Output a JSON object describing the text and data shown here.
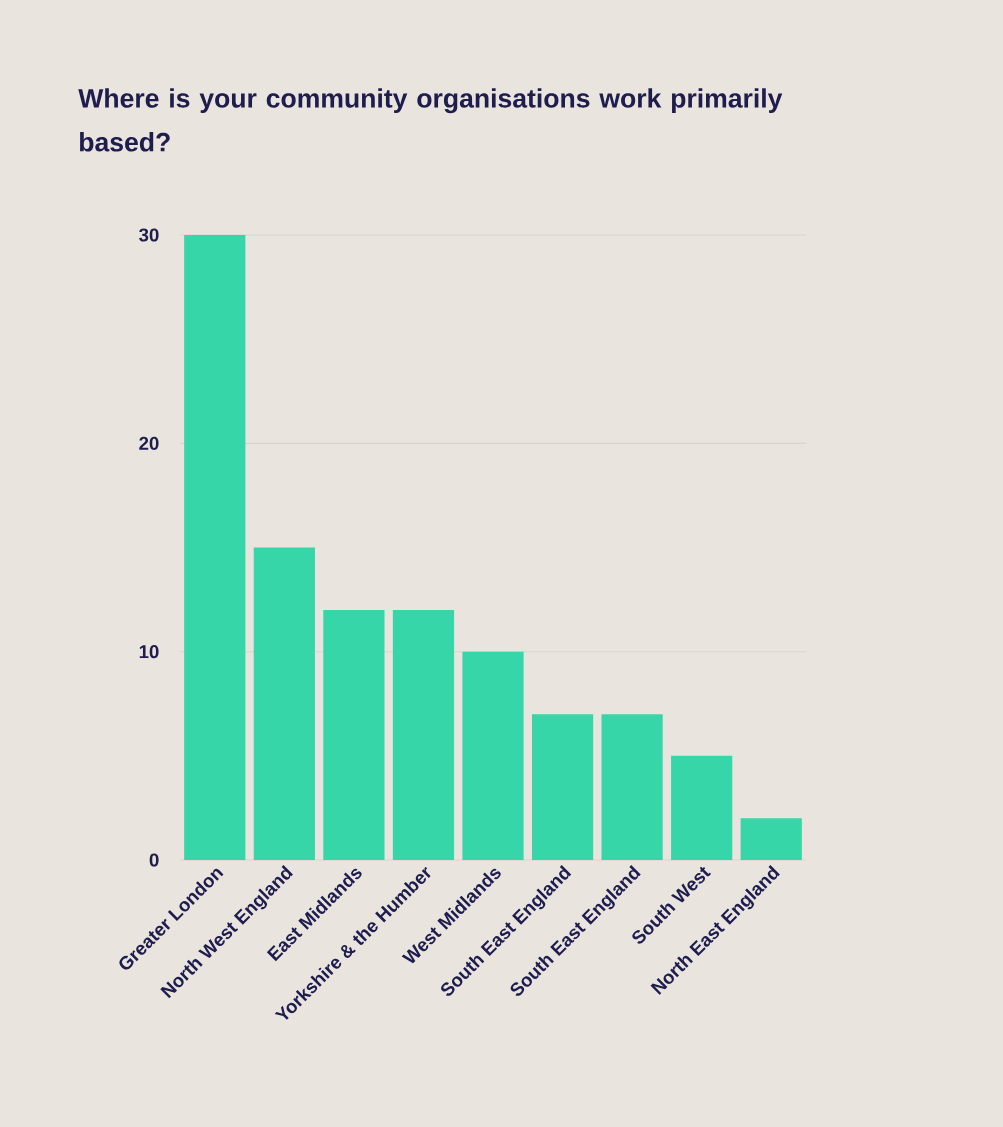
{
  "chart_data": {
    "type": "bar",
    "title": "Where is your community organisations work primarily based?",
    "categories": [
      "Greater London",
      "North West England",
      "East Midlands",
      "Yorkshire & the Humber",
      "West Midlands",
      "South East England",
      "South East England",
      "South West",
      "North East England"
    ],
    "values": [
      30,
      15,
      12,
      12,
      10,
      7,
      7,
      5,
      2
    ],
    "color": "#36d6a9",
    "ylim": [
      0,
      30
    ],
    "yticks": [
      0,
      10,
      20,
      30
    ],
    "grid": "y"
  }
}
